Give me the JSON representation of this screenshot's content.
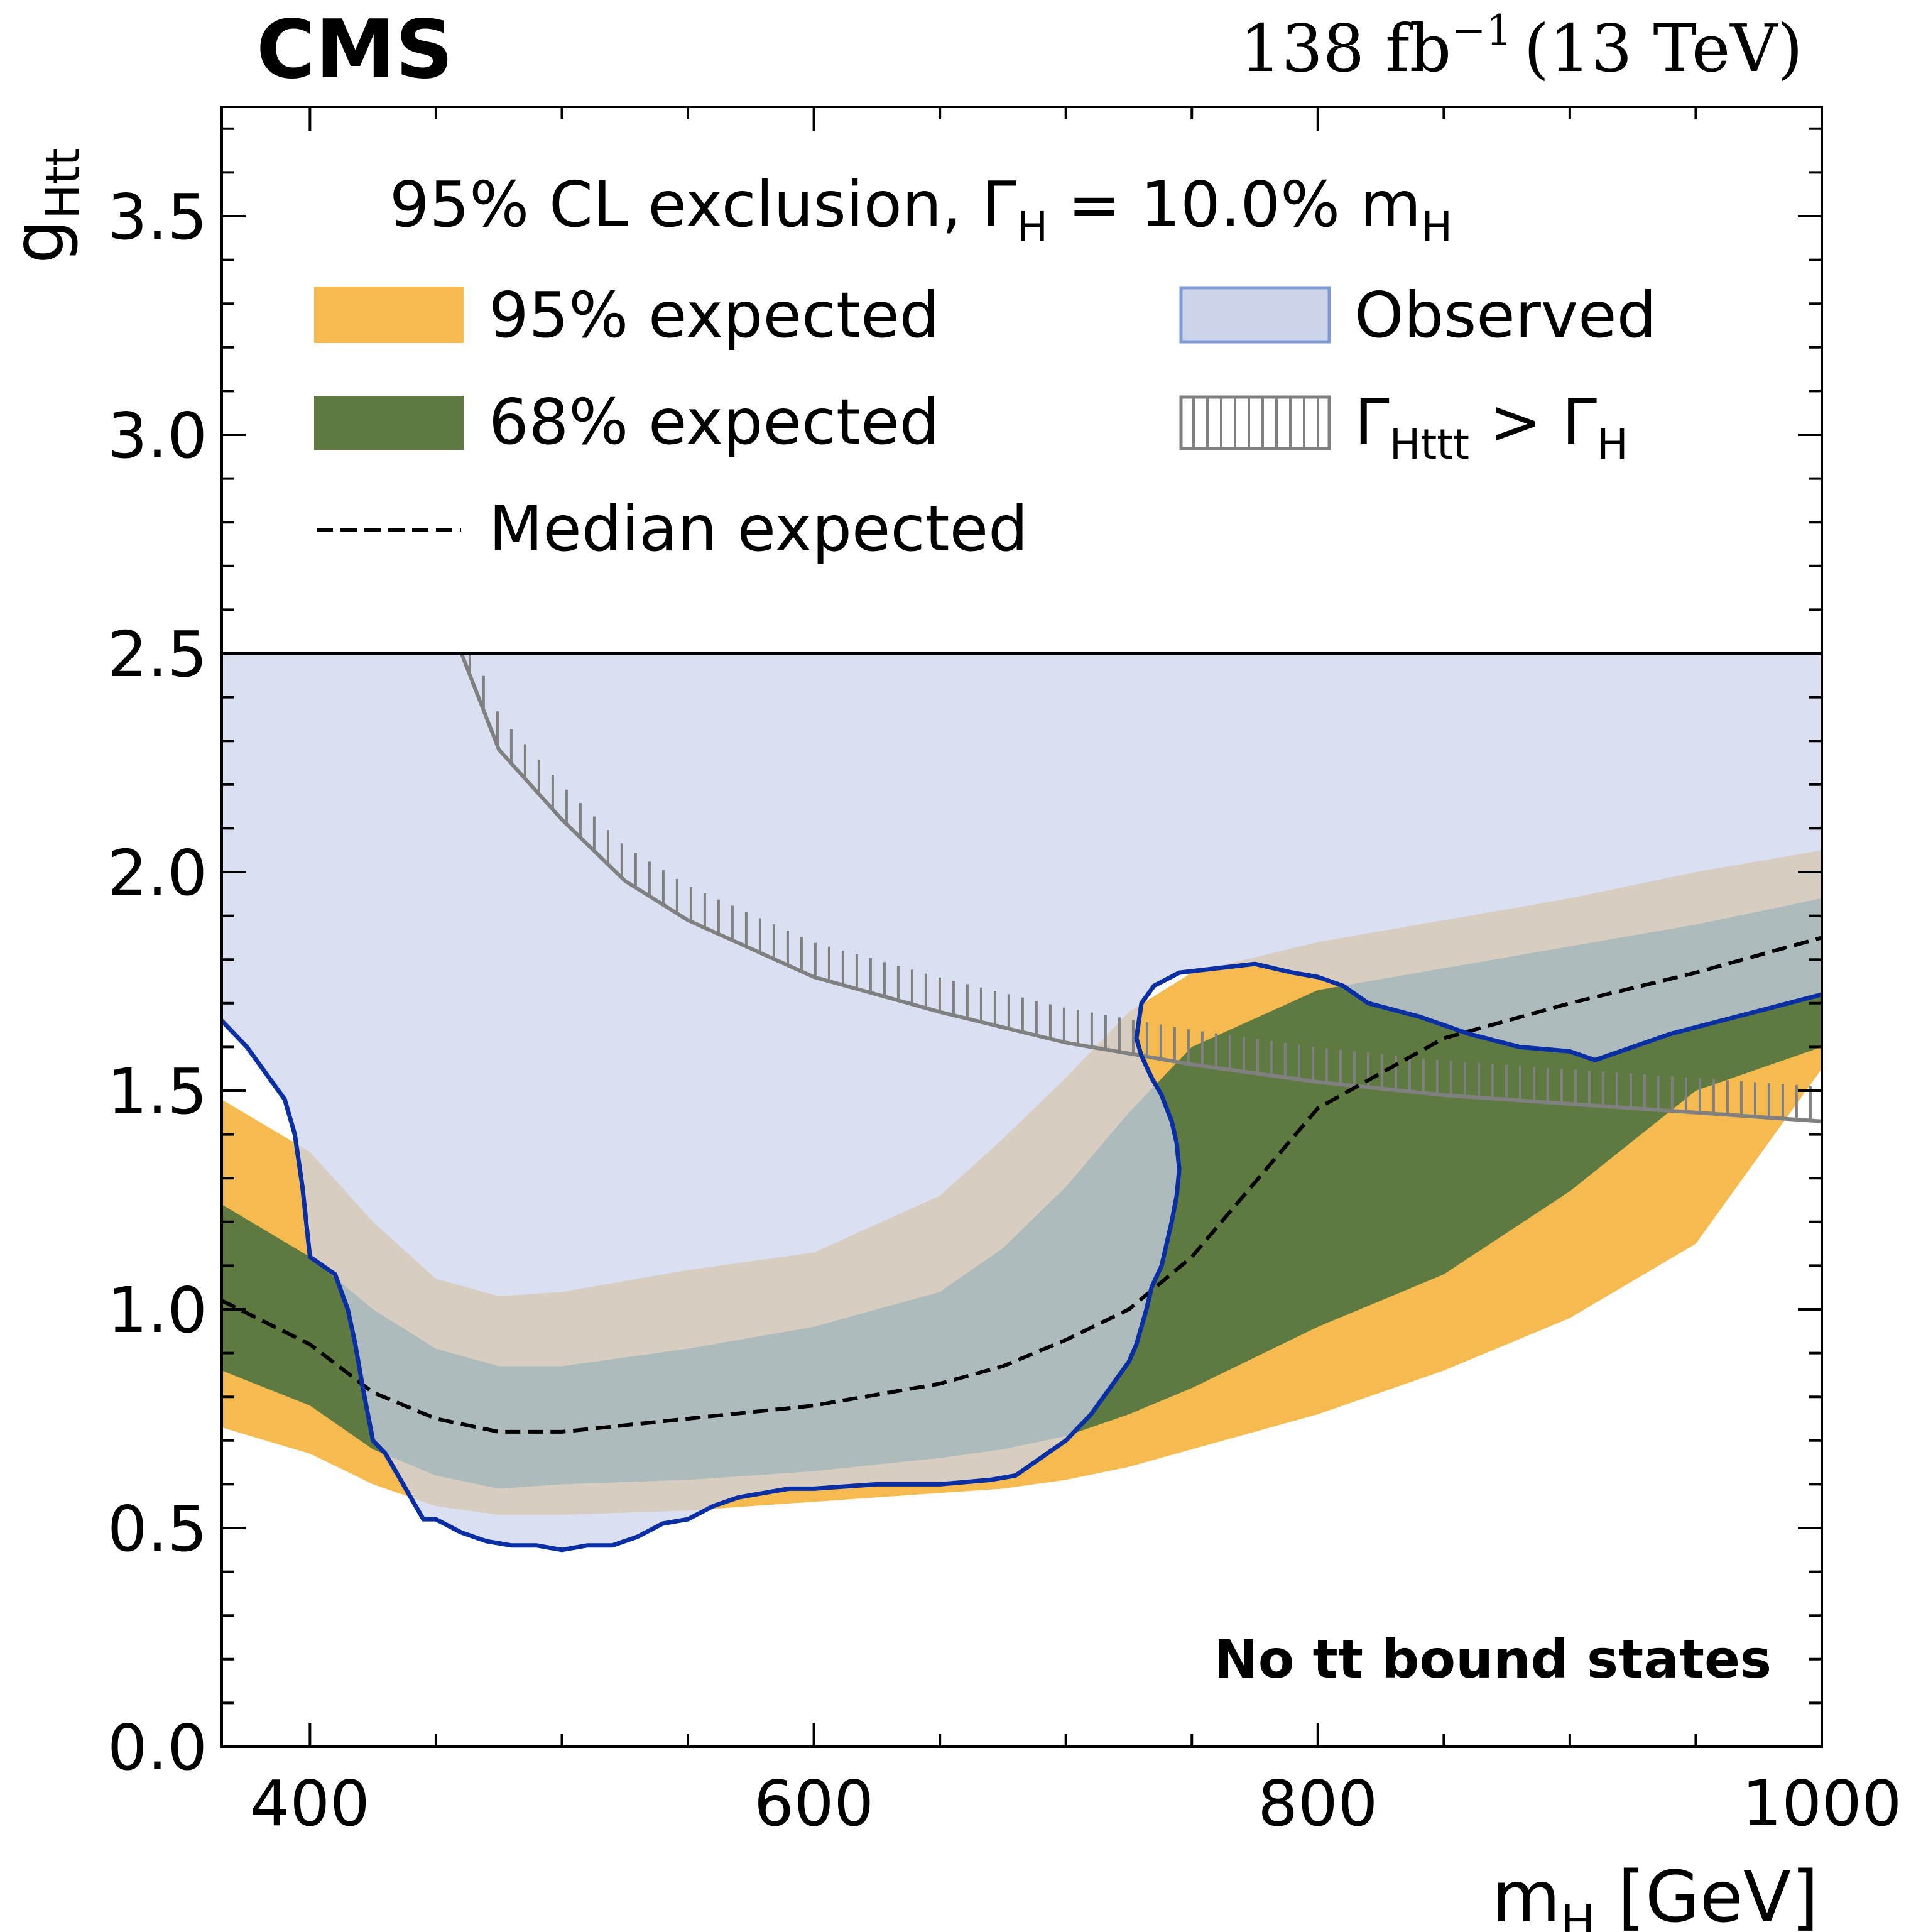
{
  "header": {
    "experiment": "CMS",
    "lumi": "138 fb",
    "lumi_exp": "−1",
    "energy": "(13 TeV)"
  },
  "annotation": {
    "pre": "No t",
    "tbar": "t",
    "post": " bound states"
  },
  "legend": {
    "title_pre": "95% CL exclusion, Γ",
    "title_sub": "H",
    "title_mid": " =  10.0% m",
    "title_sub2": "H",
    "items": [
      {
        "label": "95% expected",
        "color": "#f5bb51"
      },
      {
        "label": "68% expected",
        "color": "#5f7a40"
      },
      {
        "label": "Median expected",
        "color": "#000000"
      },
      {
        "label": "Observed",
        "color": "#ccd4ec",
        "edge": "#7f9ad3"
      },
      {
        "label_pre": "Γ",
        "label_sub": "Htt",
        "label_sub_bar": "t",
        "label_mid": " > Γ",
        "label_sub2": "H",
        "color": "#808080"
      }
    ]
  },
  "colors": {
    "band95": "#f5bb51",
    "band68": "#5f7a40",
    "median": "#000000",
    "observed_fill": "#ccd4ec",
    "observed_line": "#0a2fa5",
    "width_line": "#808080"
  },
  "chart_data": {
    "type": "line",
    "xlabel_main": "m",
    "xlabel_sub": "H",
    "xlabel_unit": " [GeV]",
    "ylabel_main": "g",
    "ylabel_sub": "Htt",
    "xlim": [
      365,
      1000
    ],
    "ylim": [
      0,
      3.75
    ],
    "xticks": [
      400,
      600,
      800,
      1000
    ],
    "yticks": [
      0.0,
      0.5,
      1.0,
      1.5,
      2.0,
      2.5,
      3.0,
      3.5
    ],
    "ytick_labels": [
      "0.0",
      "0.5",
      "1.0",
      "1.5",
      "2.0",
      "2.5",
      "3.0",
      "3.5"
    ],
    "legend_region_start": 2.5,
    "grid": false,
    "x": [
      365,
      400,
      425,
      450,
      475,
      500,
      550,
      600,
      650,
      675,
      700,
      725,
      750,
      800,
      850,
      900,
      950,
      1000
    ],
    "series": [
      {
        "name": "95% expected",
        "role": "band95_low",
        "values": [
          0.73,
          0.67,
          0.6,
          0.55,
          0.53,
          0.53,
          0.54,
          0.56,
          0.58,
          0.59,
          0.61,
          0.64,
          0.68,
          0.76,
          0.86,
          0.98,
          1.15,
          1.55
        ]
      },
      {
        "name": "95% expected",
        "role": "band95_high",
        "values": [
          1.48,
          1.36,
          1.2,
          1.07,
          1.03,
          1.04,
          1.09,
          1.13,
          1.26,
          1.39,
          1.53,
          1.68,
          1.77,
          1.84,
          1.89,
          1.94,
          2.0,
          2.05
        ]
      },
      {
        "name": "68% expected",
        "role": "band68_low",
        "values": [
          0.86,
          0.78,
          0.68,
          0.62,
          0.59,
          0.6,
          0.61,
          0.63,
          0.66,
          0.68,
          0.71,
          0.76,
          0.82,
          0.96,
          1.08,
          1.27,
          1.5,
          1.6
        ]
      },
      {
        "name": "68% expected",
        "role": "band68_high",
        "values": [
          1.24,
          1.12,
          1.0,
          0.91,
          0.87,
          0.87,
          0.91,
          0.96,
          1.04,
          1.14,
          1.28,
          1.45,
          1.6,
          1.73,
          1.78,
          1.83,
          1.88,
          1.94
        ]
      },
      {
        "name": "Median expected",
        "role": "median",
        "values": [
          1.02,
          0.92,
          0.81,
          0.75,
          0.72,
          0.72,
          0.75,
          0.78,
          0.83,
          0.87,
          0.93,
          1.0,
          1.12,
          1.46,
          1.62,
          1.7,
          1.77,
          1.85
        ]
      },
      {
        "name": "Γ_Htt > Γ_H",
        "role": "width_boundary",
        "x": [
          450,
          475,
          500,
          525,
          550,
          600,
          650,
          700,
          750,
          800,
          850,
          900,
          950,
          1000
        ],
        "values": [
          2.65,
          2.28,
          2.12,
          1.98,
          1.89,
          1.76,
          1.68,
          1.61,
          1.56,
          1.52,
          1.49,
          1.47,
          1.45,
          1.43
        ]
      },
      {
        "name": "Observed",
        "role": "observed_contour",
        "x": [
          365,
          375,
          390,
          394,
          397,
          400,
          405,
          410,
          415,
          418,
          421,
          425,
          430,
          435,
          440,
          445,
          450,
          460,
          470,
          480,
          490,
          500,
          510,
          520,
          530,
          540,
          550,
          560,
          570,
          580,
          590,
          600,
          625,
          650,
          670,
          680,
          685,
          690,
          695,
          700,
          705,
          710,
          715,
          720,
          725,
          728,
          730,
          732,
          734,
          738,
          740,
          742,
          744,
          745,
          744,
          742,
          740,
          738,
          734,
          730,
          728,
          730,
          735,
          745,
          760,
          775,
          790,
          800,
          810,
          820,
          840,
          860,
          880,
          900,
          910,
          920,
          940,
          960,
          980,
          1000
        ],
        "values": [
          1.66,
          1.6,
          1.48,
          1.4,
          1.28,
          1.12,
          1.1,
          1.08,
          1.0,
          0.92,
          0.82,
          0.7,
          0.67,
          0.62,
          0.57,
          0.52,
          0.52,
          0.49,
          0.47,
          0.46,
          0.46,
          0.45,
          0.46,
          0.46,
          0.48,
          0.51,
          0.52,
          0.55,
          0.57,
          0.58,
          0.59,
          0.59,
          0.6,
          0.6,
          0.61,
          0.62,
          0.64,
          0.66,
          0.68,
          0.7,
          0.73,
          0.76,
          0.8,
          0.84,
          0.88,
          0.92,
          0.96,
          1.0,
          1.05,
          1.1,
          1.15,
          1.2,
          1.26,
          1.32,
          1.38,
          1.43,
          1.46,
          1.49,
          1.53,
          1.58,
          1.62,
          1.7,
          1.74,
          1.77,
          1.78,
          1.79,
          1.77,
          1.76,
          1.74,
          1.7,
          1.67,
          1.63,
          1.6,
          1.59,
          1.57,
          1.59,
          1.63,
          1.66,
          1.69,
          1.72
        ]
      }
    ]
  }
}
